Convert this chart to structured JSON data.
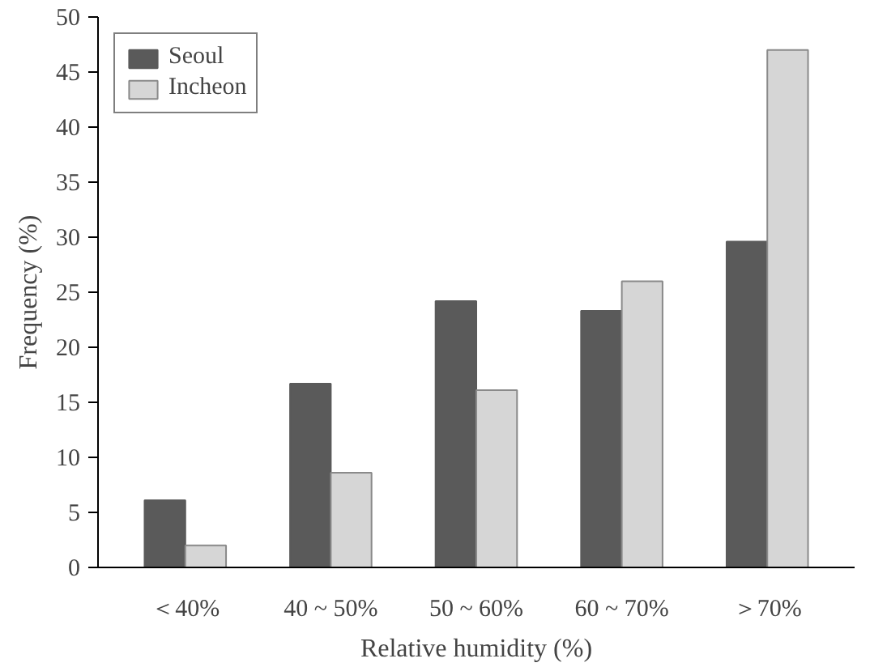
{
  "chart_data": {
    "type": "bar",
    "xlabel": "Relative humidity (%)",
    "ylabel": "Frequency (%)",
    "categories": [
      "＜40%",
      "40 ~ 50%",
      "50 ~ 60%",
      "60 ~ 70%",
      "＞70%"
    ],
    "series": [
      {
        "name": "Seoul",
        "color": "#5a5a5a",
        "values": [
          6.1,
          16.7,
          24.2,
          23.3,
          29.6
        ]
      },
      {
        "name": "Incheon",
        "color": "#d6d6d6",
        "values": [
          2.0,
          8.6,
          16.1,
          26.0,
          47.0
        ]
      }
    ],
    "ylim": [
      0,
      50
    ],
    "yticks": [
      0,
      5,
      10,
      15,
      20,
      25,
      30,
      35,
      40,
      45,
      50
    ],
    "grid": false,
    "legend": "top left"
  }
}
